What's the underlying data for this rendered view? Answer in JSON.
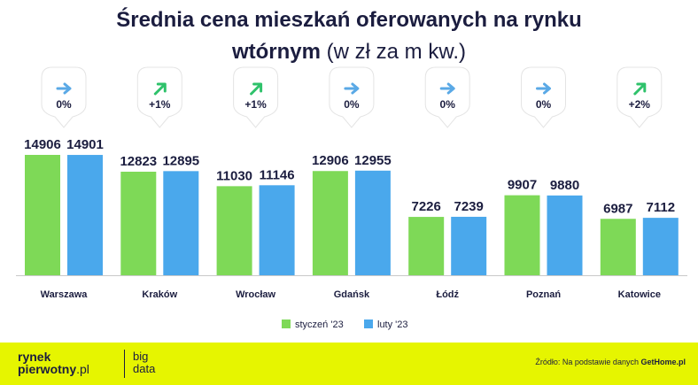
{
  "title": {
    "line1": "Średnia cena mieszkań oferowanych na rynku",
    "line2_bold": "wtórnym",
    "line2_light": "(w zł za m kw.)"
  },
  "chart_data": {
    "type": "bar",
    "categories": [
      "Warszawa",
      "Kraków",
      "Wrocław",
      "Gdańsk",
      "Łódź",
      "Poznań",
      "Katowice"
    ],
    "series": [
      {
        "name": "styczeń '23",
        "color": "#7ed957",
        "values": [
          14906,
          12823,
          11030,
          12906,
          7226,
          9907,
          6987
        ]
      },
      {
        "name": "luty '23",
        "color": "#4aa8ec",
        "values": [
          14901,
          12895,
          11146,
          12955,
          7239,
          9880,
          7112
        ]
      }
    ],
    "changes": [
      {
        "label": "0%",
        "trend": "right-arrow-icon"
      },
      {
        "label": "+1%",
        "trend": "up-right-arrow-icon"
      },
      {
        "label": "+1%",
        "trend": "up-right-arrow-icon"
      },
      {
        "label": "0%",
        "trend": "right-arrow-icon"
      },
      {
        "label": "0%",
        "trend": "right-arrow-icon"
      },
      {
        "label": "0%",
        "trend": "right-arrow-icon"
      },
      {
        "label": "+2%",
        "trend": "up-right-arrow-icon"
      }
    ],
    "ylim": [
      0,
      14906
    ],
    "grid": false,
    "legend_position": "bottom",
    "colors": {
      "flat_arrow": "#5aa9e6",
      "up_arrow": "#2fc26b",
      "text": "#1b1d3f",
      "baseline": "#c9c9c9"
    }
  },
  "footer": {
    "logo_line1": "rynek",
    "logo_line2": "pierwotny",
    "logo_line2_suffix": ".pl",
    "logo_big_line1": "big",
    "logo_big_line2": "data",
    "source_prefix": "Źródło: Na podstawie danych",
    "source_bold": "GetHome.pl",
    "background": "#e6f500"
  }
}
